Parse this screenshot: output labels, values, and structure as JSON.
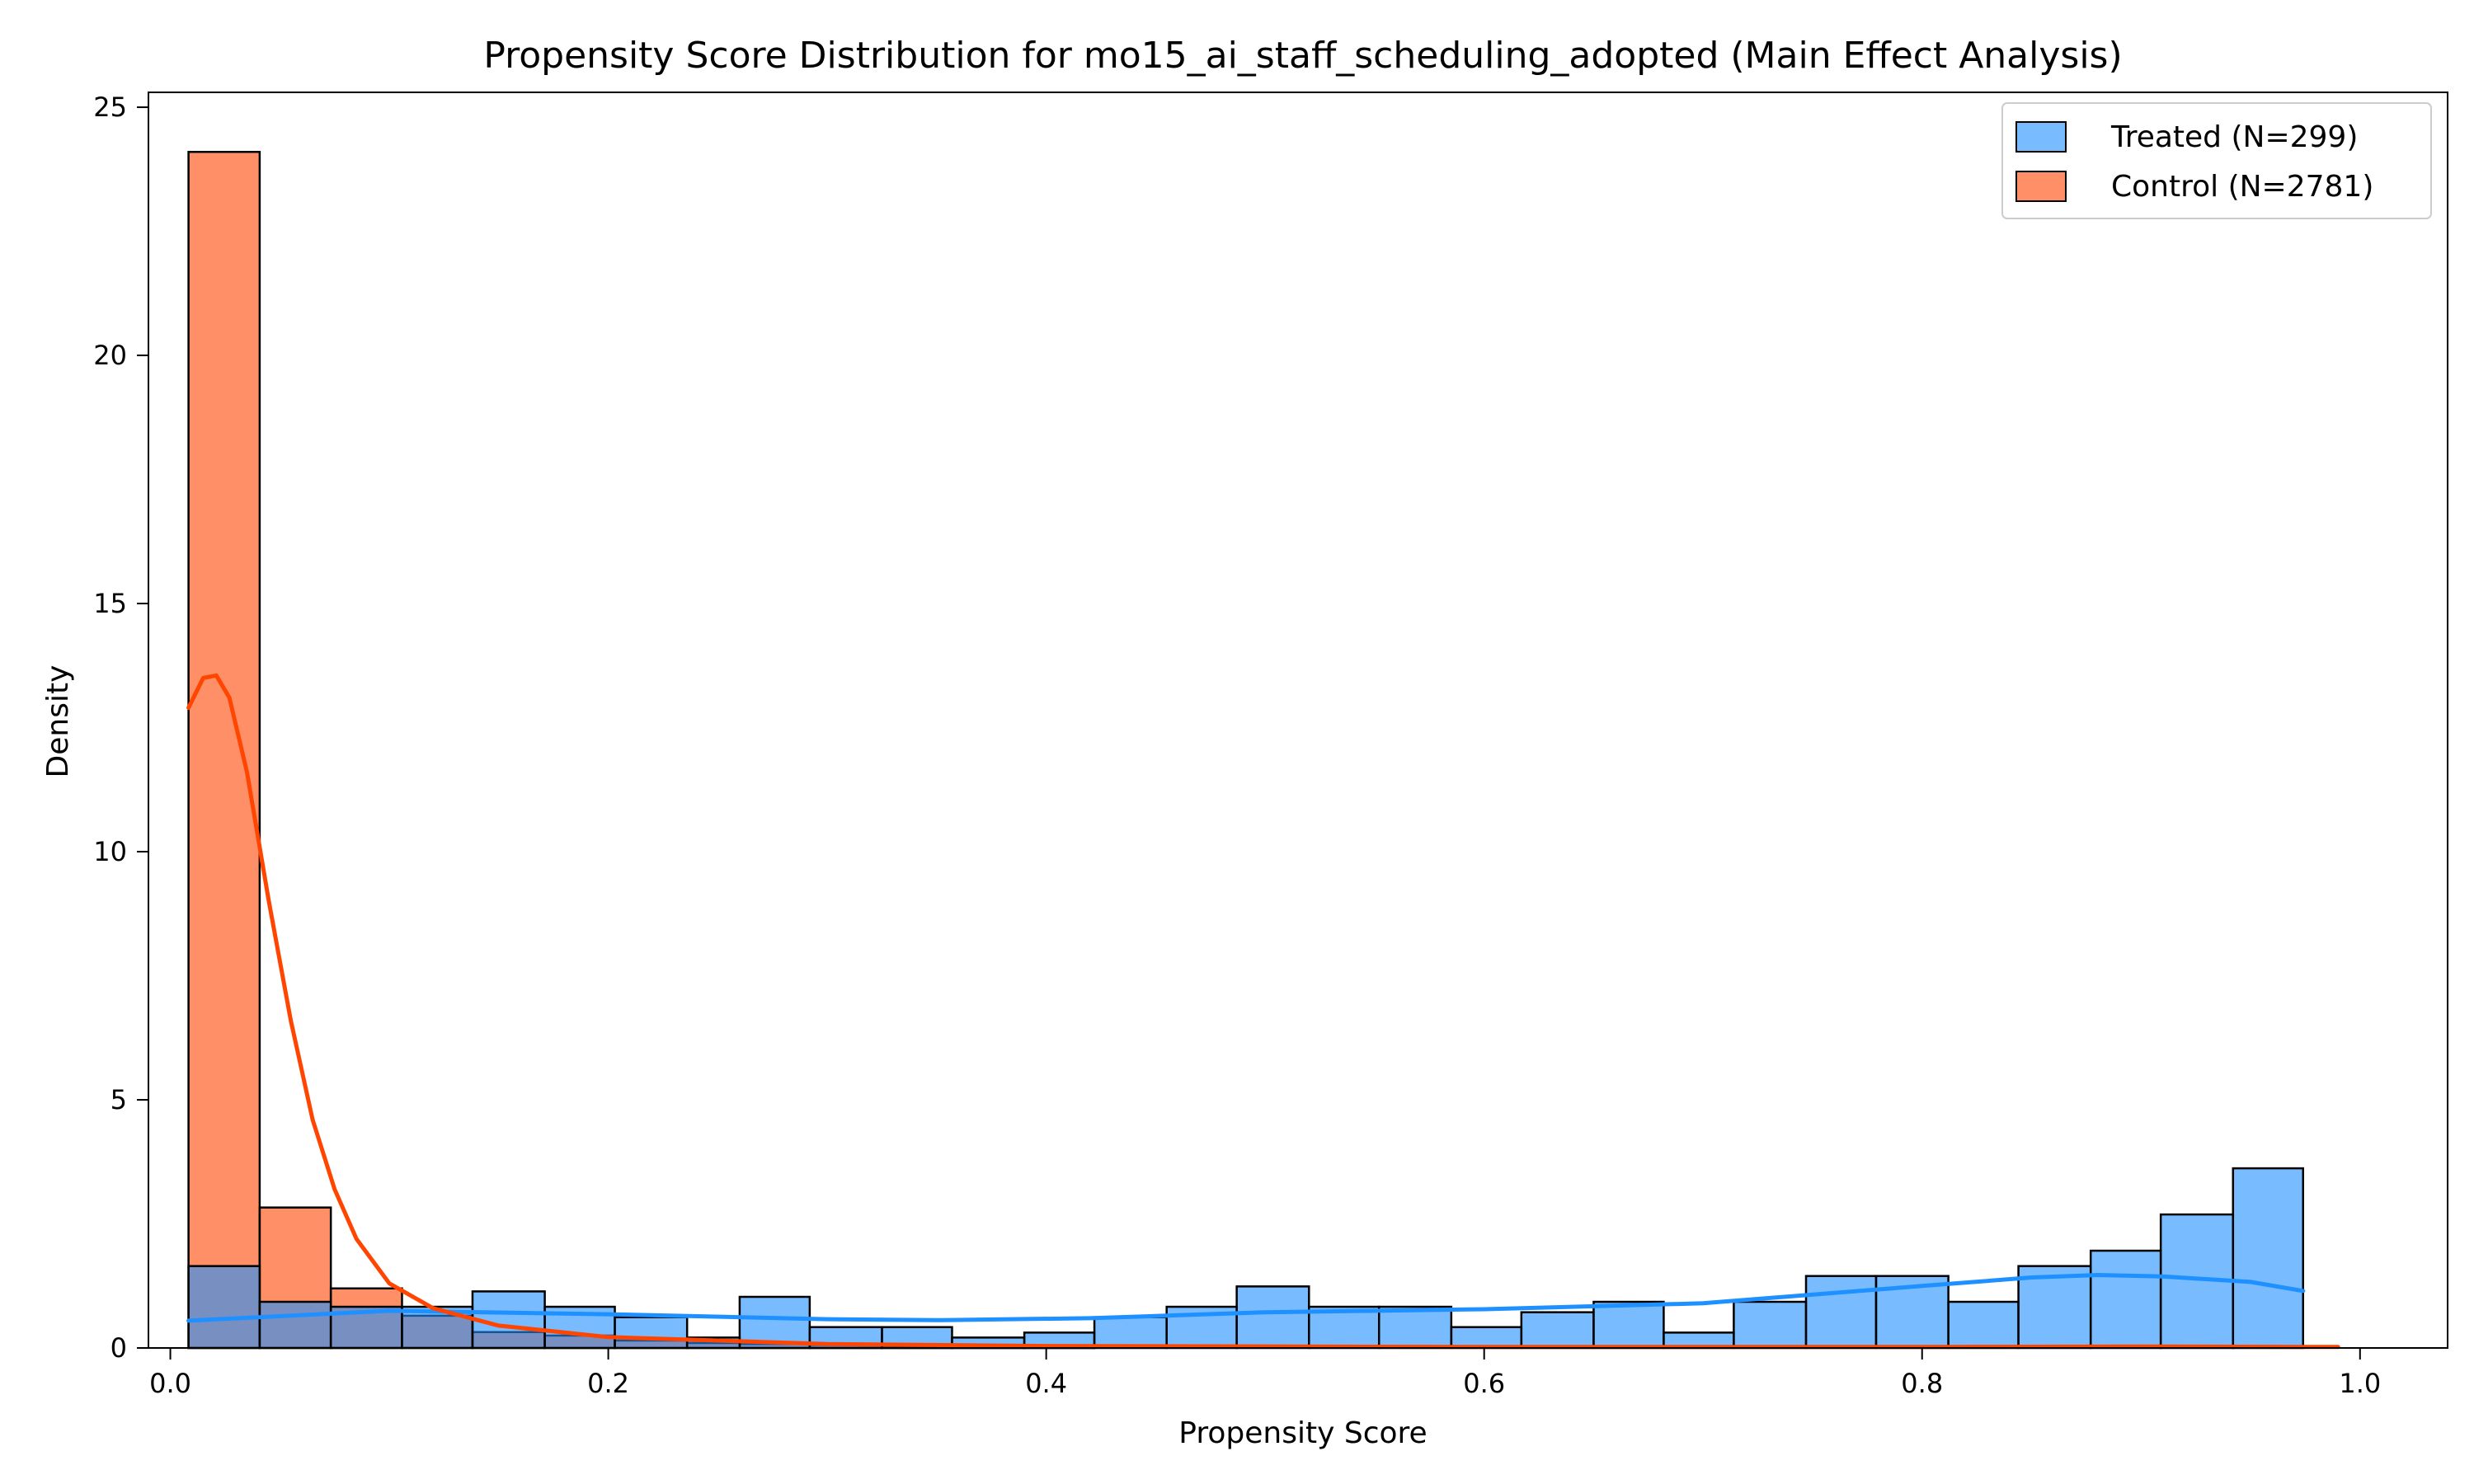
{
  "chart_data": {
    "type": "histogram",
    "title": "Propensity Score Distribution for mo15_ai_staff_scheduling_adopted (Main Effect Analysis)",
    "xlabel": "Propensity Score",
    "ylabel": "Density",
    "xlim": [
      -0.01,
      1.04
    ],
    "ylim": [
      0,
      25.3
    ],
    "xticks": [
      0.0,
      0.2,
      0.4,
      0.6,
      0.8,
      1.0
    ],
    "xtick_labels": [
      "0.0",
      "0.2",
      "0.4",
      "0.6",
      "0.8",
      "1.0"
    ],
    "yticks": [
      0,
      5,
      10,
      15,
      20,
      25
    ],
    "ytick_labels": [
      "0",
      "5",
      "10",
      "15",
      "20",
      "25"
    ],
    "grid": false,
    "legend": "top-right",
    "colors": {
      "treated_fill": "#1e90ff",
      "treated_line": "#1e90ff",
      "control_fill": "#ff4500",
      "control_line": "#ff4500",
      "edge": "#000000"
    },
    "series": [
      {
        "name": "Treated",
        "legend_label": "Treated (N=299)",
        "bins": [
          [
            0.26,
            0.292,
            1.03
          ],
          [
            0.292,
            0.325,
            0.42
          ],
          [
            0.325,
            0.357,
            0.42
          ],
          [
            0.357,
            0.39,
            0.21
          ],
          [
            0.39,
            0.422,
            0.31
          ],
          [
            0.422,
            0.455,
            0.62
          ],
          [
            0.455,
            0.487,
            0.83
          ],
          [
            0.487,
            0.52,
            1.24
          ],
          [
            0.52,
            0.552,
            0.83
          ],
          [
            0.552,
            0.585,
            0.83
          ],
          [
            0.585,
            0.617,
            0.42
          ],
          [
            0.617,
            0.65,
            0.72
          ],
          [
            0.65,
            0.682,
            0.93
          ],
          [
            0.682,
            0.714,
            0.31
          ],
          [
            0.714,
            0.747,
            0.93
          ],
          [
            0.747,
            0.779,
            1.45
          ],
          [
            0.779,
            0.812,
            1.45
          ],
          [
            0.812,
            0.844,
            0.93
          ],
          [
            0.844,
            0.877,
            1.65
          ],
          [
            0.877,
            0.909,
            1.96
          ],
          [
            0.909,
            0.942,
            2.69
          ],
          [
            0.942,
            0.974,
            3.62
          ]
        ],
        "kde": [
          [
            0.0083,
            0.55
          ],
          [
            0.1,
            0.75
          ],
          [
            0.2,
            0.68
          ],
          [
            0.3,
            0.58
          ],
          [
            0.35,
            0.56
          ],
          [
            0.42,
            0.6
          ],
          [
            0.5,
            0.72
          ],
          [
            0.6,
            0.78
          ],
          [
            0.7,
            0.9
          ],
          [
            0.8,
            1.25
          ],
          [
            0.85,
            1.42
          ],
          [
            0.88,
            1.47
          ],
          [
            0.91,
            1.44
          ],
          [
            0.95,
            1.33
          ],
          [
            0.974,
            1.15
          ]
        ]
      },
      {
        "name": "Control",
        "legend_label": "Control (N=2781)",
        "bins": [
          [
            0.0083,
            0.0408,
            24.1
          ],
          [
            0.0408,
            0.0733,
            2.83
          ],
          [
            0.0733,
            0.1058,
            1.2
          ],
          [
            0.1058,
            0.138,
            0.65
          ],
          [
            0.138,
            0.171,
            0.32
          ],
          [
            0.171,
            0.203,
            0.25
          ],
          [
            0.203,
            0.236,
            0.15
          ],
          [
            0.236,
            0.26,
            0.1
          ],
          [
            0.26,
            0.292,
            0.08
          ],
          [
            0.292,
            0.325,
            0.06
          ],
          [
            0.325,
            0.357,
            0.05
          ],
          [
            0.357,
            0.39,
            0.04
          ],
          [
            0.39,
            0.422,
            0.03
          ]
        ],
        "kde": [
          [
            0.0083,
            12.9
          ],
          [
            0.015,
            13.5
          ],
          [
            0.021,
            13.55
          ],
          [
            0.027,
            13.1
          ],
          [
            0.035,
            11.6
          ],
          [
            0.045,
            9.0
          ],
          [
            0.055,
            6.6
          ],
          [
            0.065,
            4.6
          ],
          [
            0.075,
            3.2
          ],
          [
            0.085,
            2.2
          ],
          [
            0.1,
            1.3
          ],
          [
            0.12,
            0.8
          ],
          [
            0.15,
            0.45
          ],
          [
            0.2,
            0.22
          ],
          [
            0.3,
            0.08
          ],
          [
            0.4,
            0.04
          ],
          [
            0.6,
            0.02
          ],
          [
            0.8,
            0.02
          ],
          [
            0.9,
            0.03
          ],
          [
            0.99,
            0.02
          ]
        ]
      }
    ],
    "overlap_bins": [
      [
        0.0083,
        0.0408,
        1.65
      ],
      [
        0.0408,
        0.0733,
        0.93
      ],
      [
        0.0733,
        0.1058,
        0.83
      ],
      [
        0.1058,
        0.138,
        0.83
      ],
      [
        0.138,
        0.171,
        1.14
      ],
      [
        0.171,
        0.203,
        0.83
      ],
      [
        0.203,
        0.236,
        0.62
      ],
      [
        0.236,
        0.26,
        0.21
      ]
    ]
  }
}
